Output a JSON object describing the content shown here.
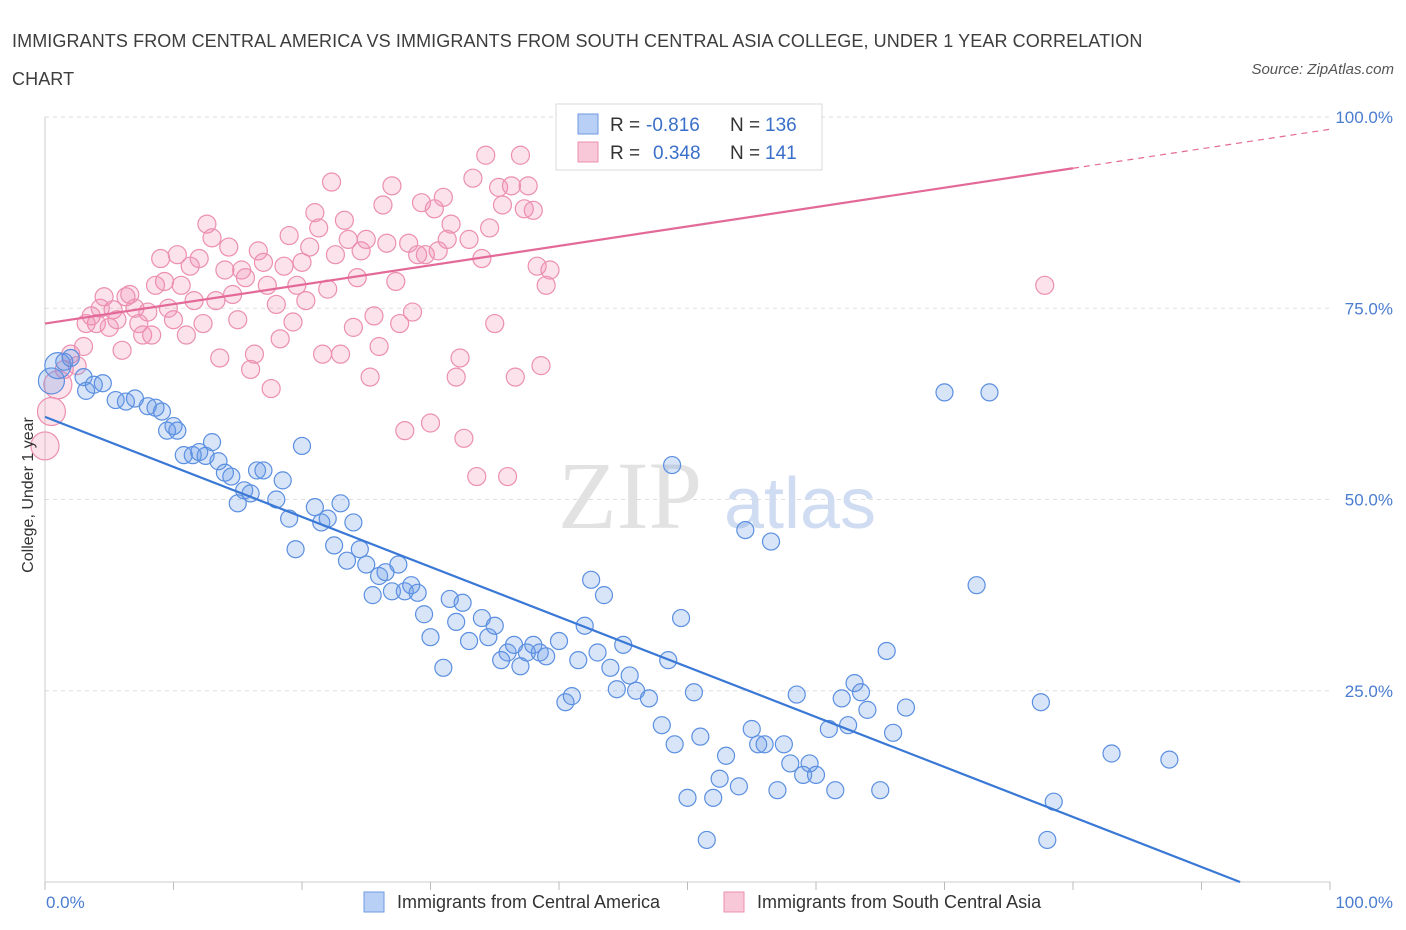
{
  "title": "IMMIGRANTS FROM CENTRAL AMERICA VS IMMIGRANTS FROM SOUTH CENTRAL ASIA COLLEGE, UNDER 1 YEAR CORRELATION CHART",
  "source": "Source: ZipAtlas.com",
  "watermark": {
    "zip": "ZIP",
    "atlas": "atlas"
  },
  "colors": {
    "blue": "#3a78d6",
    "blue_fill": "rgba(100,150,230,0.25)",
    "blue_stroke": "#5b8fe0",
    "pink": "#e36a98",
    "pink_fill": "rgba(240,140,175,0.25)",
    "pink_stroke": "#ec8fb0",
    "grid": "#dddddd",
    "tick_text": "#4a7cd0"
  },
  "legend": {
    "r_label": "R =",
    "n_label": "N =",
    "rows": [
      {
        "r": "-0.816",
        "n": "136",
        "color": "blue"
      },
      {
        "r": "0.348",
        "n": "141",
        "color": "pink"
      }
    ]
  },
  "chart_data": {
    "type": "scatter",
    "title": "IMMIGRANTS FROM CENTRAL AMERICA VS IMMIGRANTS FROM SOUTH CENTRAL ASIA COLLEGE, UNDER 1 YEAR CORRELATION CHART",
    "xlabel": "",
    "ylabel": "College, Under 1 year",
    "xlim": [
      0,
      100
    ],
    "ylim": [
      0,
      100
    ],
    "x_tick_labels": [
      "0.0%",
      "100.0%"
    ],
    "y_tick_labels": [
      "100.0%",
      "75.0%",
      "50.0%",
      "25.0%"
    ],
    "y_ticks": [
      100,
      75,
      50,
      25
    ],
    "grid": true,
    "legend_position": "top-center",
    "series": [
      {
        "name": "Immigrants from Central America",
        "color": "blue",
        "trend": {
          "x": [
            0,
            93
          ],
          "y": [
            60.8,
            0
          ]
        },
        "points": [
          [
            0.5,
            65.5
          ],
          [
            1,
            67.5
          ],
          [
            1.5,
            68
          ],
          [
            2,
            68.5
          ],
          [
            3,
            66
          ],
          [
            3.2,
            64.2
          ],
          [
            3.8,
            65
          ],
          [
            4.5,
            65.2
          ],
          [
            5.5,
            63
          ],
          [
            6.3,
            62.8
          ],
          [
            7,
            63.2
          ],
          [
            8,
            62.2
          ],
          [
            8.6,
            62
          ],
          [
            9.1,
            61.5
          ],
          [
            9.5,
            59
          ],
          [
            10,
            59.6
          ],
          [
            10.3,
            59
          ],
          [
            10.8,
            55.8
          ],
          [
            11.5,
            55.8
          ],
          [
            12,
            56.2
          ],
          [
            12.5,
            55.7
          ],
          [
            13,
            57.5
          ],
          [
            13.5,
            55
          ],
          [
            14,
            53.5
          ],
          [
            14.5,
            53
          ],
          [
            15,
            49.5
          ],
          [
            15.5,
            51.2
          ],
          [
            16,
            50.8
          ],
          [
            16.5,
            53.8
          ],
          [
            17,
            53.8
          ],
          [
            18,
            50
          ],
          [
            18.5,
            52.5
          ],
          [
            19,
            47.5
          ],
          [
            19.5,
            43.5
          ],
          [
            20,
            57
          ],
          [
            21,
            49
          ],
          [
            21.5,
            47
          ],
          [
            22,
            47.5
          ],
          [
            22.5,
            44
          ],
          [
            23,
            49.5
          ],
          [
            23.5,
            42
          ],
          [
            24,
            47
          ],
          [
            24.5,
            43.5
          ],
          [
            25,
            41.5
          ],
          [
            25.5,
            37.5
          ],
          [
            26,
            40
          ],
          [
            26.5,
            40.5
          ],
          [
            27,
            38
          ],
          [
            27.5,
            41.5
          ],
          [
            28,
            38
          ],
          [
            28.5,
            38.8
          ],
          [
            29,
            37.8
          ],
          [
            29.5,
            35
          ],
          [
            30,
            32
          ],
          [
            31,
            28
          ],
          [
            31.5,
            37
          ],
          [
            32,
            34
          ],
          [
            32.5,
            36.5
          ],
          [
            33,
            31.5
          ],
          [
            34,
            34.5
          ],
          [
            34.5,
            32
          ],
          [
            35,
            33.5
          ],
          [
            35.5,
            29
          ],
          [
            36,
            30
          ],
          [
            36.5,
            31
          ],
          [
            37,
            28.2
          ],
          [
            37.5,
            30
          ],
          [
            38,
            31
          ],
          [
            38.5,
            30
          ],
          [
            39,
            29.5
          ],
          [
            40,
            31.5
          ],
          [
            40.5,
            23.5
          ],
          [
            41,
            24.3
          ],
          [
            41.5,
            29
          ],
          [
            42,
            33.5
          ],
          [
            42.5,
            39.5
          ],
          [
            43,
            30
          ],
          [
            43.5,
            37.5
          ],
          [
            44,
            28
          ],
          [
            44.5,
            25.2
          ],
          [
            45,
            31
          ],
          [
            45.5,
            27
          ],
          [
            46,
            25
          ],
          [
            47,
            24
          ],
          [
            48,
            20.5
          ],
          [
            48.5,
            29
          ],
          [
            48.8,
            54.5
          ],
          [
            49,
            18
          ],
          [
            49.5,
            34.5
          ],
          [
            50,
            11
          ],
          [
            50.5,
            24.8
          ],
          [
            51,
            19
          ],
          [
            51.5,
            5.5
          ],
          [
            52,
            11
          ],
          [
            52.5,
            13.5
          ],
          [
            53,
            16.5
          ],
          [
            54,
            12.5
          ],
          [
            54.5,
            46
          ],
          [
            55,
            20
          ],
          [
            55.5,
            18
          ],
          [
            56,
            18
          ],
          [
            56.5,
            44.5
          ],
          [
            57,
            12
          ],
          [
            57.5,
            18
          ],
          [
            58,
            15.5
          ],
          [
            58.5,
            24.5
          ],
          [
            59,
            14
          ],
          [
            59.5,
            15.5
          ],
          [
            60,
            14
          ],
          [
            61,
            20
          ],
          [
            61.5,
            12
          ],
          [
            62,
            24
          ],
          [
            62.5,
            20.5
          ],
          [
            63,
            26
          ],
          [
            63.5,
            24.8
          ],
          [
            64,
            22.5
          ],
          [
            65,
            12
          ],
          [
            65.5,
            30.2
          ],
          [
            66,
            19.5
          ],
          [
            67,
            22.8
          ],
          [
            70,
            64
          ],
          [
            72.5,
            38.8
          ],
          [
            73.5,
            64
          ],
          [
            77.5,
            23.5
          ],
          [
            78,
            5.5
          ],
          [
            78.5,
            10.5
          ],
          [
            83,
            16.8
          ],
          [
            87.5,
            16
          ]
        ]
      },
      {
        "name": "Immigrants from South Central Asia",
        "color": "pink",
        "trend": {
          "x": [
            0,
            80
          ],
          "y": [
            73,
            93.3
          ]
        },
        "trend_dashed": {
          "x": [
            80,
            100
          ],
          "y": [
            93.3,
            98.4
          ]
        },
        "points": [
          [
            0,
            57
          ],
          [
            0.5,
            61.5
          ],
          [
            1,
            65
          ],
          [
            1.5,
            67
          ],
          [
            2,
            69
          ],
          [
            2.5,
            67.5
          ],
          [
            3,
            70
          ],
          [
            3.2,
            73
          ],
          [
            3.6,
            74
          ],
          [
            4,
            73
          ],
          [
            4.3,
            75
          ],
          [
            4.6,
            76.5
          ],
          [
            5,
            72.5
          ],
          [
            5.3,
            74.8
          ],
          [
            5.6,
            73.5
          ],
          [
            6,
            69.5
          ],
          [
            6.3,
            76.5
          ],
          [
            6.6,
            76.8
          ],
          [
            7,
            75
          ],
          [
            7.3,
            73
          ],
          [
            7.6,
            71.5
          ],
          [
            8,
            74.5
          ],
          [
            8.3,
            71.5
          ],
          [
            8.6,
            78
          ],
          [
            9,
            81.5
          ],
          [
            9.3,
            78.5
          ],
          [
            9.6,
            75
          ],
          [
            10,
            73.5
          ],
          [
            10.3,
            82
          ],
          [
            10.6,
            78
          ],
          [
            11,
            71.5
          ],
          [
            11.3,
            80.5
          ],
          [
            11.6,
            76
          ],
          [
            12,
            81.5
          ],
          [
            12.3,
            73
          ],
          [
            12.6,
            86
          ],
          [
            13,
            84.2
          ],
          [
            13.3,
            76
          ],
          [
            13.6,
            68.5
          ],
          [
            14,
            80
          ],
          [
            14.3,
            83
          ],
          [
            14.6,
            76.8
          ],
          [
            15,
            73.5
          ],
          [
            15.3,
            80
          ],
          [
            15.6,
            79
          ],
          [
            16,
            67
          ],
          [
            16.3,
            69
          ],
          [
            16.6,
            82.5
          ],
          [
            17,
            81
          ],
          [
            17.3,
            78
          ],
          [
            17.6,
            64.5
          ],
          [
            18,
            75.5
          ],
          [
            18.3,
            71
          ],
          [
            18.6,
            80.5
          ],
          [
            19,
            84.5
          ],
          [
            19.3,
            73.2
          ],
          [
            19.6,
            78
          ],
          [
            20,
            81
          ],
          [
            20.3,
            76
          ],
          [
            20.6,
            83
          ],
          [
            21,
            87.5
          ],
          [
            21.3,
            85.5
          ],
          [
            21.6,
            69
          ],
          [
            22,
            77.5
          ],
          [
            22.3,
            91.5
          ],
          [
            22.6,
            82
          ],
          [
            23,
            69
          ],
          [
            23.3,
            86.5
          ],
          [
            23.6,
            84
          ],
          [
            24,
            72.5
          ],
          [
            24.3,
            79
          ],
          [
            24.6,
            82.5
          ],
          [
            25,
            84
          ],
          [
            25.3,
            66
          ],
          [
            25.6,
            74
          ],
          [
            26,
            70
          ],
          [
            26.3,
            88.5
          ],
          [
            26.6,
            83.5
          ],
          [
            27,
            91
          ],
          [
            27.3,
            78.5
          ],
          [
            27.6,
            73
          ],
          [
            28,
            59
          ],
          [
            28.3,
            83.5
          ],
          [
            28.6,
            74.5
          ],
          [
            29,
            82
          ],
          [
            29.3,
            88.8
          ],
          [
            29.6,
            82
          ],
          [
            30,
            60
          ],
          [
            30.3,
            88
          ],
          [
            30.6,
            82.5
          ],
          [
            31,
            89.5
          ],
          [
            31.3,
            84
          ],
          [
            31.6,
            86
          ],
          [
            32,
            66
          ],
          [
            32.3,
            68.5
          ],
          [
            32.6,
            58
          ],
          [
            33,
            84
          ],
          [
            33.3,
            92
          ],
          [
            33.6,
            53
          ],
          [
            34,
            81.5
          ],
          [
            34.3,
            95
          ],
          [
            34.6,
            85.5
          ],
          [
            35,
            73
          ],
          [
            35.3,
            90.8
          ],
          [
            35.6,
            88.5
          ],
          [
            36,
            53
          ],
          [
            36.3,
            91
          ],
          [
            36.6,
            66
          ],
          [
            37,
            95
          ],
          [
            37.3,
            88
          ],
          [
            37.6,
            91
          ],
          [
            38,
            87.8
          ],
          [
            38.3,
            80.5
          ],
          [
            38.6,
            67.5
          ],
          [
            39,
            78
          ],
          [
            39.3,
            80
          ],
          [
            77.8,
            78
          ]
        ]
      }
    ]
  },
  "bottom_legend": [
    {
      "label": "Immigrants from Central America",
      "color": "blue"
    },
    {
      "label": "Immigrants from South Central Asia",
      "color": "pink"
    }
  ]
}
